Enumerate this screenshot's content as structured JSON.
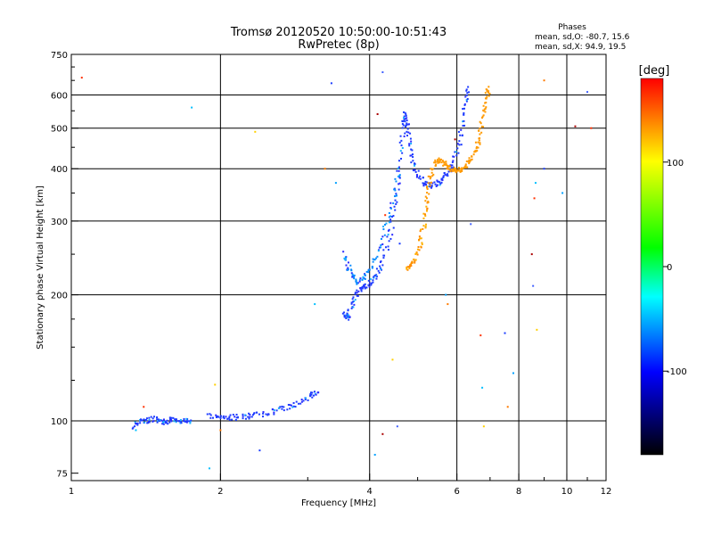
{
  "chart_data": {
    "type": "scatter",
    "title": "Tromsø 20120520 10:50:00-10:51:43",
    "subtitle": "RwPretec (8p)",
    "xlabel": "Frequency [MHz]",
    "ylabel": "Stationary phase Virtual Height [km]",
    "x_scale": "log",
    "y_scale": "log",
    "xlim": [
      1,
      12
    ],
    "ylim": [
      72,
      750
    ],
    "x_ticks": [
      1,
      2,
      4,
      6,
      8,
      10,
      12
    ],
    "x_tick_labels": [
      "1",
      "2",
      "4",
      "6",
      "8",
      "10",
      "12"
    ],
    "y_ticks": [
      75,
      100,
      200,
      300,
      400,
      500,
      600,
      750
    ],
    "y_tick_labels": [
      "75",
      "100",
      "200",
      "300",
      "400",
      "500",
      "600",
      "750"
    ],
    "grid": true,
    "phases_box": {
      "title": "Phases",
      "line_o": "mean, sd,O: -80.7, 15.6",
      "line_x": "mean, sd,X:  94.9, 19.5"
    },
    "colorbar": {
      "label": "[deg]",
      "range": [
        -180,
        180
      ],
      "ticks": [
        100,
        0,
        -100
      ],
      "tick_labels": [
        "100",
        "0",
        "-100"
      ],
      "colors": [
        "#ff0000",
        "#ffff00",
        "#00ff00",
        "#00ffff",
        "#0000ff",
        "#000000"
      ]
    },
    "traces": [
      {
        "kind": "lowE",
        "pts": [
          [
            1.33,
            96
          ],
          [
            1.38,
            100
          ],
          [
            1.42,
            100
          ],
          [
            1.47,
            101
          ],
          [
            1.52,
            100
          ],
          [
            1.56,
            99
          ],
          [
            1.6,
            101
          ],
          [
            1.65,
            100
          ],
          [
            1.7,
            100
          ],
          [
            1.75,
            99
          ]
        ],
        "phase": -100
      },
      {
        "kind": "E",
        "pts": [
          [
            1.9,
            103
          ],
          [
            2.0,
            102
          ],
          [
            2.1,
            102
          ],
          [
            2.2,
            102
          ],
          [
            2.3,
            103
          ],
          [
            2.45,
            104
          ],
          [
            2.6,
            106
          ],
          [
            2.75,
            108
          ],
          [
            2.9,
            111
          ],
          [
            3.05,
            115
          ],
          [
            3.15,
            118
          ]
        ],
        "phase": -95
      },
      {
        "kind": "F1o",
        "pts": [
          [
            3.55,
            180
          ],
          [
            3.6,
            176
          ],
          [
            3.65,
            182
          ],
          [
            3.72,
            196
          ],
          [
            3.8,
            205
          ],
          [
            3.9,
            208
          ],
          [
            4.0,
            212
          ],
          [
            4.1,
            220
          ],
          [
            4.22,
            235
          ],
          [
            4.35,
            262
          ],
          [
            4.45,
            300
          ],
          [
            4.55,
            360
          ],
          [
            4.63,
            440
          ],
          [
            4.68,
            510
          ],
          [
            4.72,
            540
          ],
          [
            4.76,
            500
          ],
          [
            4.82,
            450
          ],
          [
            4.9,
            410
          ],
          [
            5.0,
            385
          ],
          [
            5.15,
            370
          ],
          [
            5.3,
            365
          ],
          [
            5.45,
            368
          ],
          [
            5.6,
            375
          ],
          [
            5.75,
            390
          ],
          [
            5.9,
            410
          ],
          [
            6.05,
            450
          ],
          [
            6.15,
            510
          ],
          [
            6.25,
            580
          ],
          [
            6.3,
            630
          ]
        ],
        "phase": -95
      },
      {
        "kind": "F1o2",
        "pts": [
          [
            3.55,
            250
          ],
          [
            3.62,
            235
          ],
          [
            3.7,
            222
          ],
          [
            3.8,
            215
          ],
          [
            3.92,
            222
          ],
          [
            4.05,
            236
          ],
          [
            4.2,
            260
          ],
          [
            4.35,
            300
          ],
          [
            4.5,
            350
          ],
          [
            4.6,
            400
          ]
        ],
        "phase": -85
      },
      {
        "kind": "Fx",
        "pts": [
          [
            4.75,
            232
          ],
          [
            4.85,
            235
          ],
          [
            4.95,
            245
          ],
          [
            5.05,
            262
          ],
          [
            5.12,
            285
          ],
          [
            5.2,
            320
          ],
          [
            5.25,
            350
          ],
          [
            5.3,
            380
          ],
          [
            5.4,
            410
          ],
          [
            5.5,
            420
          ],
          [
            5.6,
            415
          ],
          [
            5.72,
            405
          ],
          [
            5.85,
            398
          ],
          [
            6.0,
            396
          ],
          [
            6.15,
            400
          ],
          [
            6.3,
            410
          ],
          [
            6.45,
            430
          ],
          [
            6.6,
            460
          ],
          [
            6.72,
            500
          ],
          [
            6.82,
            550
          ],
          [
            6.9,
            600
          ],
          [
            6.95,
            630
          ]
        ],
        "phase": 95
      },
      {
        "kind": "noise",
        "pts": [
          [
            1.05,
            660
          ],
          [
            1.75,
            560
          ],
          [
            2.35,
            490
          ],
          [
            3.35,
            640
          ],
          [
            3.25,
            400
          ],
          [
            3.42,
            370
          ],
          [
            4.15,
            540
          ],
          [
            4.25,
            680
          ],
          [
            4.3,
            310
          ],
          [
            3.1,
            190
          ],
          [
            4.45,
            140
          ],
          [
            4.6,
            265
          ],
          [
            5.75,
            190
          ],
          [
            5.7,
            200
          ],
          [
            5.95,
            470
          ],
          [
            6.4,
            295
          ],
          [
            6.7,
            160
          ],
          [
            6.75,
            120
          ],
          [
            6.8,
            97
          ],
          [
            7.5,
            162
          ],
          [
            7.6,
            108
          ],
          [
            7.8,
            130
          ],
          [
            8.5,
            250
          ],
          [
            8.55,
            210
          ],
          [
            8.6,
            340
          ],
          [
            8.65,
            370
          ],
          [
            8.7,
            165
          ],
          [
            9.0,
            400
          ],
          [
            9.0,
            650
          ],
          [
            9.8,
            350
          ],
          [
            10.4,
            505
          ],
          [
            11.0,
            610
          ],
          [
            11.2,
            500
          ],
          [
            1.9,
            77
          ],
          [
            1.95,
            122
          ],
          [
            2.4,
            85
          ],
          [
            2.0,
            95
          ],
          [
            4.1,
            83
          ],
          [
            4.25,
            93
          ],
          [
            4.55,
            97
          ],
          [
            1.4,
            108
          ],
          [
            1.35,
            95
          ]
        ],
        "phase": 0
      }
    ]
  }
}
